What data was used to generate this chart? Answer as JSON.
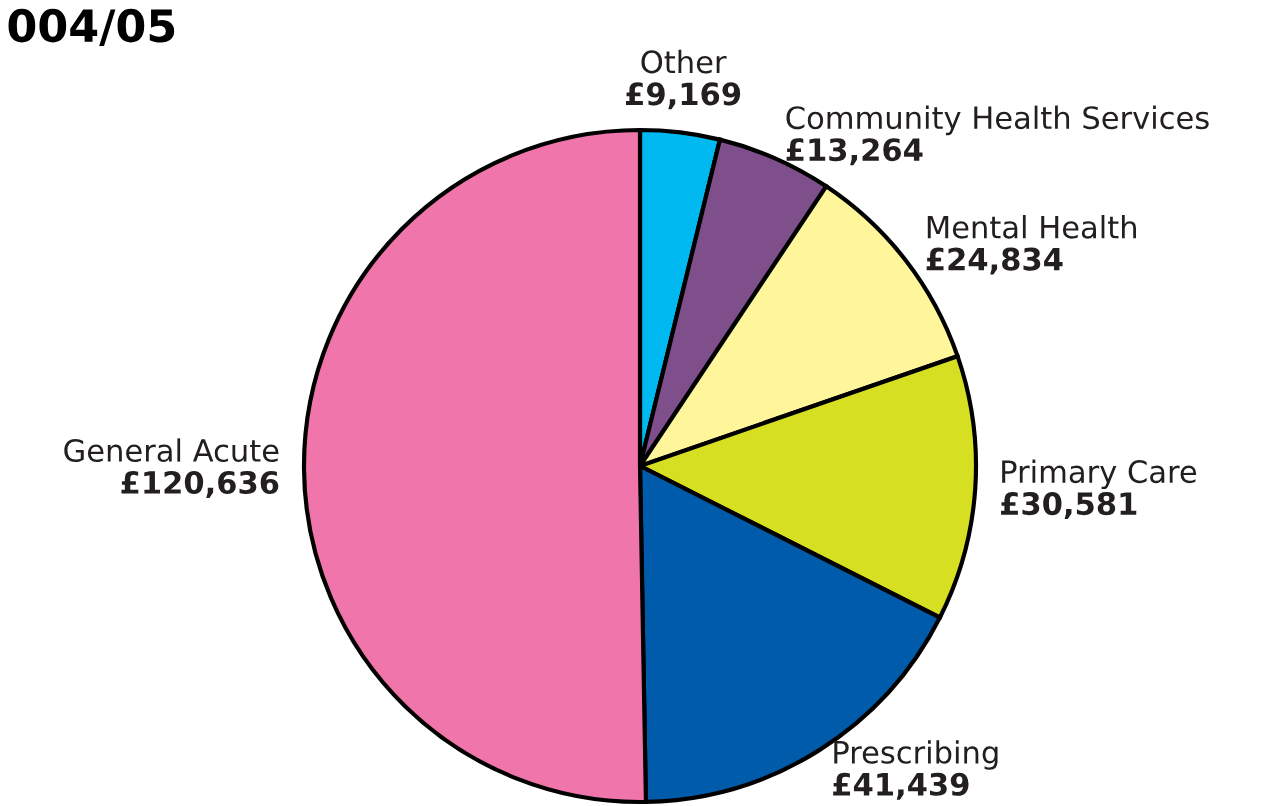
{
  "chart_data": {
    "type": "pie",
    "title": "004/05",
    "categories": [
      "Other",
      "Community Health Services",
      "Mental Health",
      "Primary Care",
      "Prescribing",
      "General Acute"
    ],
    "values": [
      9169,
      13264,
      24834,
      30581,
      41439,
      120636
    ],
    "value_labels": [
      "£9,169",
      "£13,264",
      "£24,834",
      "£30,581",
      "£41,439",
      "£120,636"
    ],
    "colors": [
      "#00b9f0",
      "#7f4f8c",
      "#fff59a",
      "#d7df23",
      "#005baa",
      "#f075ab"
    ]
  }
}
